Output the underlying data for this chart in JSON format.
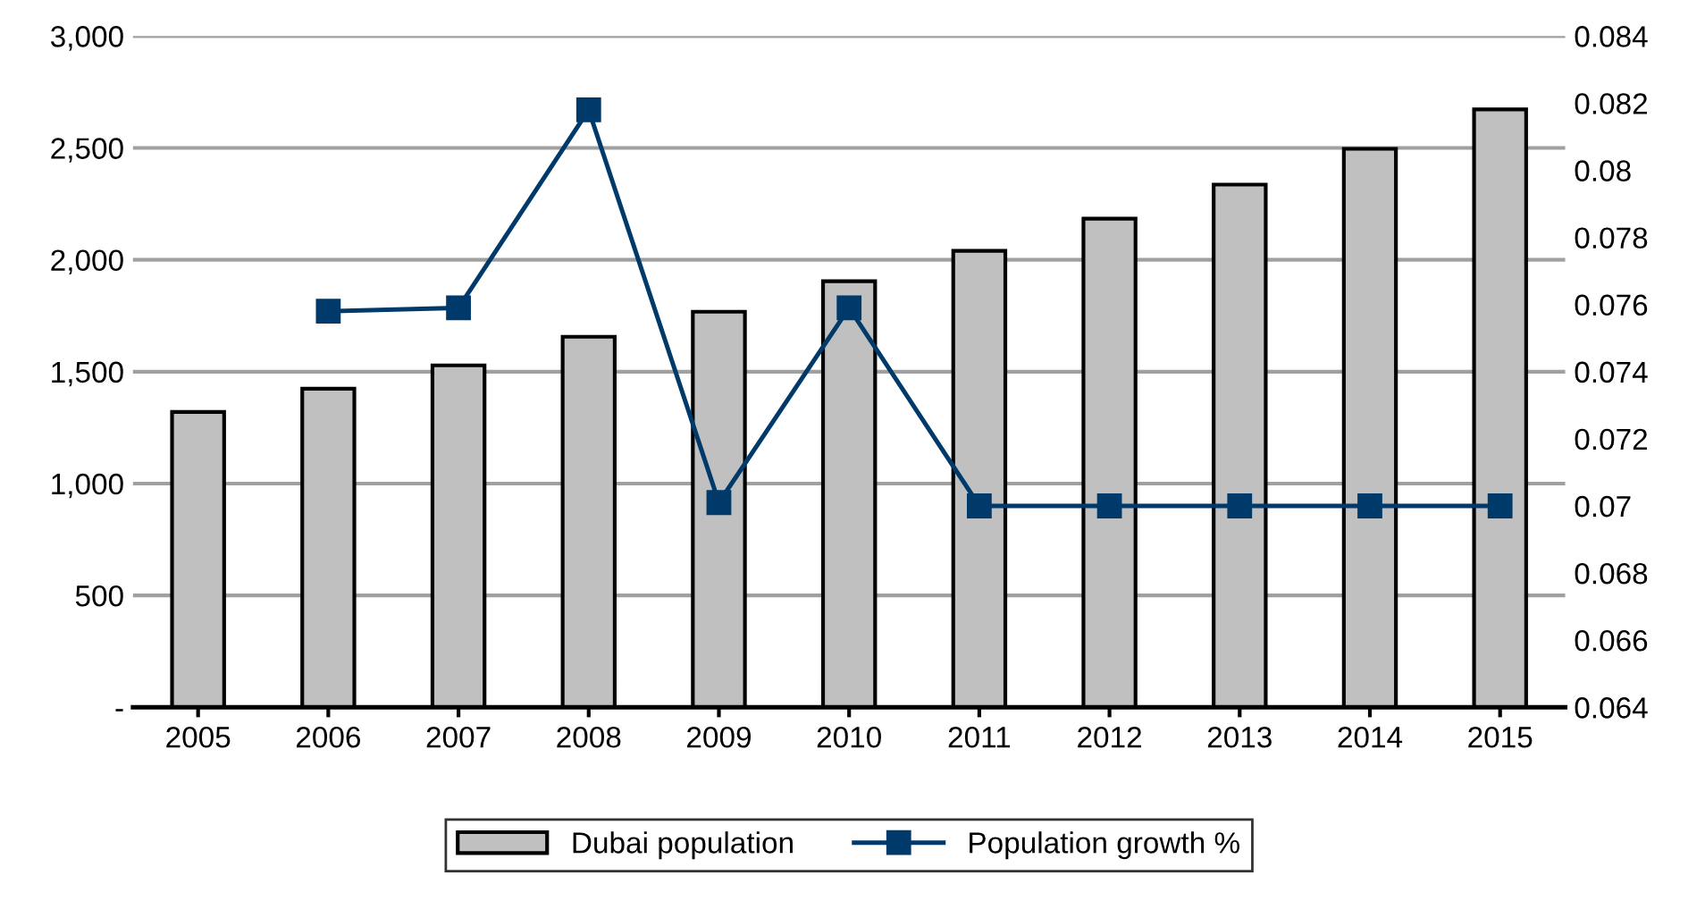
{
  "chart_data": {
    "type": "bar",
    "categories": [
      "2005",
      "2006",
      "2007",
      "2008",
      "2009",
      "2010",
      "2011",
      "2012",
      "2013",
      "2014",
      "2015"
    ],
    "series": [
      {
        "name": "Dubai population",
        "color": "#c0c0c0",
        "values": [
          1320,
          1424,
          1528,
          1656,
          1768,
          1904,
          2040,
          2184,
          2336,
          2496,
          2672
        ]
      },
      {
        "name": "Population growth %",
        "type": "line",
        "axis": "y2",
        "color": "#003a6b",
        "marker": "square",
        "values": [
          null,
          0.0758,
          0.0759,
          0.0818,
          0.0701,
          0.0759,
          0.07,
          0.07,
          0.07,
          0.07,
          0.07
        ]
      }
    ],
    "ylim": [
      0,
      3000
    ],
    "yticks": [
      {
        "value": 0,
        "label": "-"
      },
      {
        "value": 500,
        "label": "500"
      },
      {
        "value": 1000,
        "label": "1,000"
      },
      {
        "value": 1500,
        "label": "1,500"
      },
      {
        "value": 2000,
        "label": "2,000"
      },
      {
        "value": 2500,
        "label": "2,500"
      },
      {
        "value": 3000,
        "label": "3,000"
      }
    ],
    "y2lim": [
      0.064,
      0.084
    ],
    "y2ticks": [
      0.064,
      0.066,
      0.068,
      0.07,
      0.072,
      0.074,
      0.076,
      0.078,
      0.08,
      0.082,
      0.084
    ],
    "grid": "y",
    "legend": "bottom"
  }
}
